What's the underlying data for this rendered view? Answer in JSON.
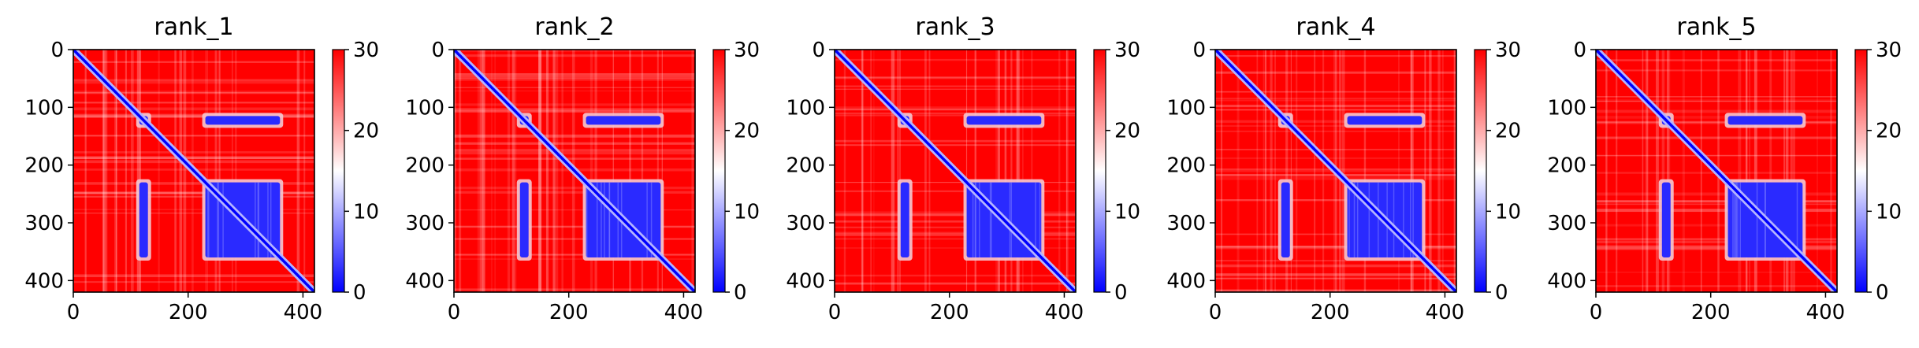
{
  "chart_data": [
    {
      "type": "heatmap",
      "title": "rank_1",
      "matrix_size": 420,
      "xlim": [
        0,
        420
      ],
      "ylim": [
        420,
        0
      ],
      "x_ticks": [
        0,
        200,
        400
      ],
      "y_ticks": [
        0,
        100,
        200,
        300,
        400
      ],
      "colorbar": {
        "min": 0,
        "max": 30,
        "ticks": [
          0,
          10,
          20,
          30
        ]
      },
      "colormap": [
        "#0000ff",
        "#ffffff",
        "#ff0000"
      ],
      "blocks": [
        [
          115,
          130
        ],
        [
          230,
          360
        ]
      ],
      "blue_regions": [
        {
          "x": [
            115,
            130
          ],
          "y": [
            115,
            130
          ]
        },
        {
          "x": [
            230,
            360
          ],
          "y": [
            115,
            130
          ]
        },
        {
          "x": [
            115,
            130
          ],
          "y": [
            230,
            360
          ]
        },
        {
          "x": [
            230,
            360
          ],
          "y": [
            230,
            360
          ]
        }
      ],
      "grid": false
    },
    {
      "type": "heatmap",
      "title": "rank_2",
      "matrix_size": 420,
      "xlim": [
        0,
        420
      ],
      "ylim": [
        420,
        0
      ],
      "x_ticks": [
        0,
        200,
        400
      ],
      "y_ticks": [
        0,
        100,
        200,
        300,
        400
      ],
      "colorbar": {
        "min": 0,
        "max": 30,
        "ticks": [
          0,
          10,
          20,
          30
        ]
      },
      "colormap": [
        "#0000ff",
        "#ffffff",
        "#ff0000"
      ],
      "blocks": [
        [
          115,
          130
        ],
        [
          230,
          360
        ]
      ],
      "blue_regions": [
        {
          "x": [
            115,
            130
          ],
          "y": [
            115,
            130
          ]
        },
        {
          "x": [
            230,
            360
          ],
          "y": [
            115,
            130
          ]
        },
        {
          "x": [
            115,
            130
          ],
          "y": [
            230,
            360
          ]
        },
        {
          "x": [
            230,
            360
          ],
          "y": [
            230,
            360
          ]
        }
      ],
      "grid": false
    },
    {
      "type": "heatmap",
      "title": "rank_3",
      "matrix_size": 420,
      "xlim": [
        0,
        420
      ],
      "ylim": [
        420,
        0
      ],
      "x_ticks": [
        0,
        200,
        400
      ],
      "y_ticks": [
        0,
        100,
        200,
        300,
        400
      ],
      "colorbar": {
        "min": 0,
        "max": 30,
        "ticks": [
          0,
          10,
          20,
          30
        ]
      },
      "colormap": [
        "#0000ff",
        "#ffffff",
        "#ff0000"
      ],
      "blocks": [
        [
          115,
          130
        ],
        [
          230,
          360
        ]
      ],
      "blue_regions": [
        {
          "x": [
            115,
            130
          ],
          "y": [
            115,
            130
          ]
        },
        {
          "x": [
            230,
            360
          ],
          "y": [
            115,
            130
          ]
        },
        {
          "x": [
            115,
            130
          ],
          "y": [
            230,
            360
          ]
        },
        {
          "x": [
            230,
            360
          ],
          "y": [
            230,
            360
          ]
        }
      ],
      "grid": false
    },
    {
      "type": "heatmap",
      "title": "rank_4",
      "matrix_size": 420,
      "xlim": [
        0,
        420
      ],
      "ylim": [
        420,
        0
      ],
      "x_ticks": [
        0,
        200,
        400
      ],
      "y_ticks": [
        0,
        100,
        200,
        300,
        400
      ],
      "colorbar": {
        "min": 0,
        "max": 30,
        "ticks": [
          0,
          10,
          20,
          30
        ]
      },
      "colormap": [
        "#0000ff",
        "#ffffff",
        "#ff0000"
      ],
      "blocks": [
        [
          115,
          130
        ],
        [
          230,
          360
        ]
      ],
      "blue_regions": [
        {
          "x": [
            115,
            130
          ],
          "y": [
            115,
            130
          ]
        },
        {
          "x": [
            230,
            360
          ],
          "y": [
            115,
            130
          ]
        },
        {
          "x": [
            115,
            130
          ],
          "y": [
            230,
            360
          ]
        },
        {
          "x": [
            230,
            360
          ],
          "y": [
            230,
            360
          ]
        }
      ],
      "grid": false
    },
    {
      "type": "heatmap",
      "title": "rank_5",
      "matrix_size": 420,
      "xlim": [
        0,
        420
      ],
      "ylim": [
        420,
        0
      ],
      "x_ticks": [
        0,
        200,
        400
      ],
      "y_ticks": [
        0,
        100,
        200,
        300,
        400
      ],
      "colorbar": {
        "min": 0,
        "max": 30,
        "ticks": [
          0,
          10,
          20,
          30
        ]
      },
      "colormap": [
        "#0000ff",
        "#ffffff",
        "#ff0000"
      ],
      "blocks": [
        [
          115,
          130
        ],
        [
          230,
          360
        ]
      ],
      "blue_regions": [
        {
          "x": [
            115,
            130
          ],
          "y": [
            115,
            130
          ]
        },
        {
          "x": [
            230,
            360
          ],
          "y": [
            115,
            130
          ]
        },
        {
          "x": [
            115,
            130
          ],
          "y": [
            230,
            360
          ]
        },
        {
          "x": [
            230,
            360
          ],
          "y": [
            230,
            360
          ]
        }
      ],
      "grid": false
    }
  ]
}
